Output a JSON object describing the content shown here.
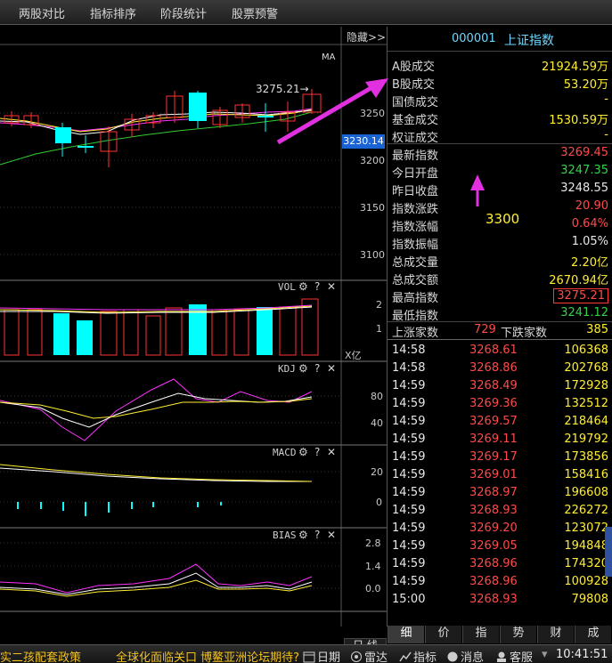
{
  "menu": {
    "items": [
      "两股对比",
      "指标排序",
      "阶段统计",
      "股票预警"
    ]
  },
  "chart": {
    "hide_label": "隐藏>>",
    "ma_label": "MA",
    "high_marker": "3275.21→",
    "current_price": "3230.14",
    "price_ticks": [
      "3250",
      "3200",
      "3150",
      "3100"
    ],
    "vol": {
      "title": "VOL",
      "ticks": [
        "2",
        "1",
        "X亿"
      ]
    },
    "kdj": {
      "title": "KDJ",
      "ticks": [
        "80",
        "40"
      ]
    },
    "macd": {
      "title": "MACD",
      "ticks": [
        "20",
        "0"
      ]
    },
    "bias": {
      "title": "BIAS",
      "ticks": [
        "2.8",
        "1.4",
        "0.0"
      ]
    },
    "gear_glyph": "⚙",
    "help_glyph": "?",
    "close_glyph": "✕",
    "period_label": "日 线"
  },
  "quote": {
    "code": "000001",
    "name": "上证指数",
    "group1": [
      {
        "label": "A股成交",
        "value": "21924.59万",
        "color": "yellow"
      },
      {
        "label": "B股成交",
        "value": "53.20万",
        "color": "yellow"
      },
      {
        "label": "国债成交",
        "value": "-",
        "color": "yellow"
      },
      {
        "label": "基金成交",
        "value": "1530.59万",
        "color": "yellow"
      },
      {
        "label": "权证成交",
        "value": "-",
        "color": "yellow"
      }
    ],
    "group2": [
      {
        "label": "最新指数",
        "value": "3269.45",
        "color": "red"
      },
      {
        "label": "今日开盘",
        "value": "3247.35",
        "color": "green"
      },
      {
        "label": "昨日收盘",
        "value": "3248.55",
        "color": "white"
      },
      {
        "label": "指数涨跌",
        "value": "20.90",
        "color": "red"
      },
      {
        "label": "指数涨幅",
        "value": "0.64%",
        "color": "red"
      },
      {
        "label": "指数振幅",
        "value": "1.05%",
        "color": "white"
      },
      {
        "label": "总成交量",
        "value": "2.20亿",
        "color": "yellow"
      },
      {
        "label": "总成交额",
        "value": "2670.94亿",
        "color": "yellow"
      },
      {
        "label": "最高指数",
        "value": "3275.21",
        "color": "red",
        "boxed": true
      },
      {
        "label": "最低指数",
        "value": "3241.12",
        "color": "green"
      }
    ],
    "up_label": "上涨家数",
    "up_count": "729",
    "down_label": "下跌家数",
    "down_count": "385"
  },
  "ticks": [
    {
      "time": "14:58",
      "price": "3268.61",
      "volume": "106368"
    },
    {
      "time": "14:58",
      "price": "3268.86",
      "volume": "202768"
    },
    {
      "time": "14:59",
      "price": "3268.49",
      "volume": "172928"
    },
    {
      "time": "14:59",
      "price": "3269.36",
      "volume": "132512"
    },
    {
      "time": "14:59",
      "price": "3269.57",
      "volume": "218464"
    },
    {
      "time": "14:59",
      "price": "3269.11",
      "volume": "219792"
    },
    {
      "time": "14:59",
      "price": "3269.17",
      "volume": "173856"
    },
    {
      "time": "14:59",
      "price": "3269.01",
      "volume": "158416"
    },
    {
      "time": "14:59",
      "price": "3268.97",
      "volume": "196608"
    },
    {
      "time": "14:59",
      "price": "3268.93",
      "volume": "226272"
    },
    {
      "time": "14:59",
      "price": "3269.20",
      "volume": "123072"
    },
    {
      "time": "14:59",
      "price": "3269.05",
      "volume": "194848"
    },
    {
      "time": "14:59",
      "price": "3268.96",
      "volume": "174320"
    },
    {
      "time": "14:59",
      "price": "3268.96",
      "volume": "100928"
    },
    {
      "time": "15:00",
      "price": "3268.93",
      "volume": "79808"
    }
  ],
  "panel_tabs": [
    "细",
    "价",
    "指",
    "势",
    "财",
    "成"
  ],
  "annotation": {
    "text": "3300"
  },
  "statusbar": {
    "news_left": "实二孩配套政策",
    "news_right": "全球化面临关口 博鳌亚洲论坛期待?",
    "buttons": [
      "日期",
      "雷达",
      "指标",
      "消息",
      "客服"
    ],
    "clock": "10:41:51"
  },
  "colors": {
    "up": "#ff4a4a",
    "down": "#00ffff",
    "ma_white": "#ffffff",
    "ma_yellow": "#ffee33",
    "ma_magenta": "#ff33ff",
    "ma_green": "#33cc33",
    "annotation": "#e030e0"
  }
}
